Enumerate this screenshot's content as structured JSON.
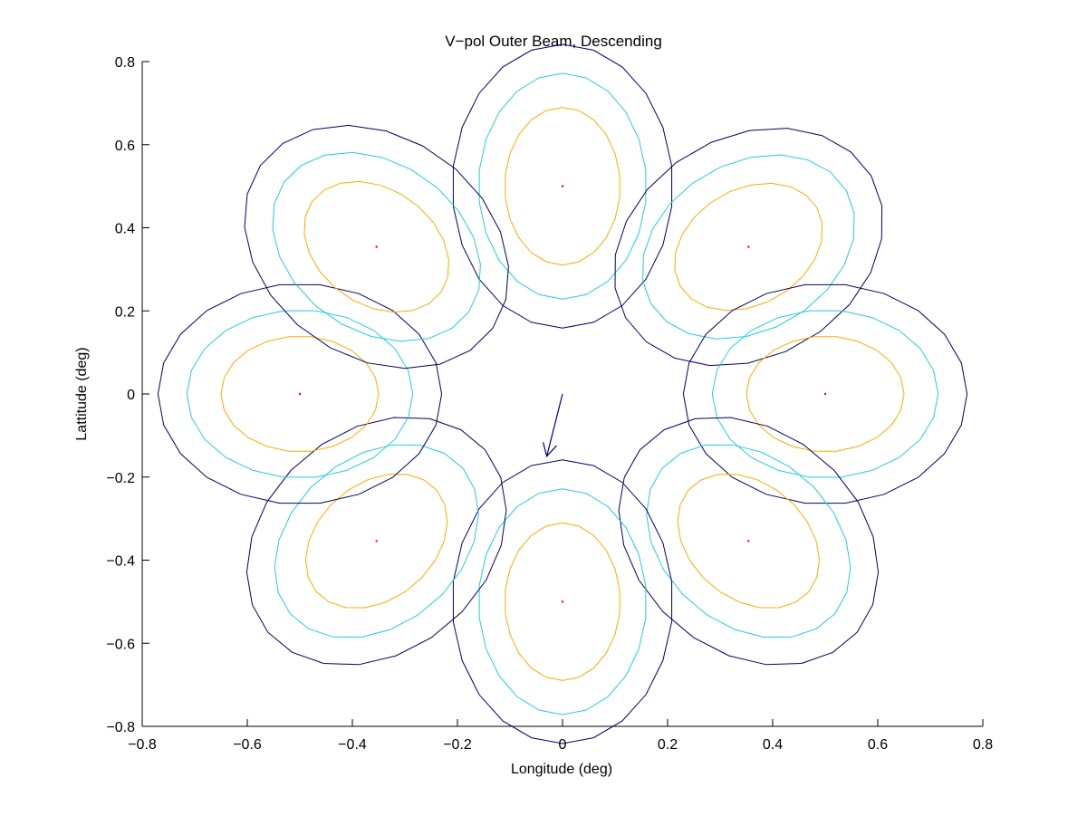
{
  "chart_data": {
    "type": "contour",
    "title": "V−pol Outer Beam, Descending",
    "xlabel": "Longitude (deg)",
    "ylabel": "Lattitude (deg)",
    "xlim": [
      -0.8,
      0.8
    ],
    "ylim": [
      -0.8,
      0.8
    ],
    "xticks": [
      -0.8,
      -0.6,
      -0.4,
      -0.2,
      0,
      0.2,
      0.4,
      0.6,
      0.8
    ],
    "yticks": [
      -0.8,
      -0.6,
      -0.4,
      -0.2,
      0,
      0.2,
      0.4,
      0.6,
      0.8
    ],
    "xtick_labels": [
      "−0.8",
      "−0.6",
      "−0.4",
      "−0.2",
      "0",
      "0.2",
      "0.4",
      "0.6",
      "0.8"
    ],
    "ytick_labels": [
      "−0.8",
      "−0.6",
      "−0.4",
      "−0.2",
      "0",
      "0.2",
      "0.4",
      "0.6",
      "0.8"
    ],
    "grid": false,
    "box": false,
    "contour_levels": [
      {
        "level": "outer",
        "color": "#000066",
        "half_minor": 0.21,
        "half_major": 0.27
      },
      {
        "level": "middle",
        "color": "#22ccdd",
        "half_minor": 0.16,
        "half_major": 0.215
      },
      {
        "level": "inner",
        "color": "#ffaa00",
        "half_minor": 0.11,
        "half_major": 0.15
      }
    ],
    "beams": [
      {
        "center": [
          0.0,
          0.5
        ],
        "angle_deg": 90
      },
      {
        "center": [
          0.354,
          0.354
        ],
        "angle_deg": 30
      },
      {
        "center": [
          0.5,
          0.0
        ],
        "angle_deg": 0
      },
      {
        "center": [
          0.354,
          -0.354
        ],
        "angle_deg": -40
      },
      {
        "center": [
          0.0,
          -0.5
        ],
        "angle_deg": 90
      },
      {
        "center": [
          -0.354,
          -0.354
        ],
        "angle_deg": 40
      },
      {
        "center": [
          -0.5,
          0.0
        ],
        "angle_deg": 0
      },
      {
        "center": [
          -0.354,
          0.354
        ],
        "angle_deg": -35
      }
    ],
    "center_marker_color": "#ff0000",
    "arrow": {
      "from": [
        0.0,
        0.0
      ],
      "to": [
        -0.03,
        -0.15
      ],
      "color": "#000080"
    }
  }
}
